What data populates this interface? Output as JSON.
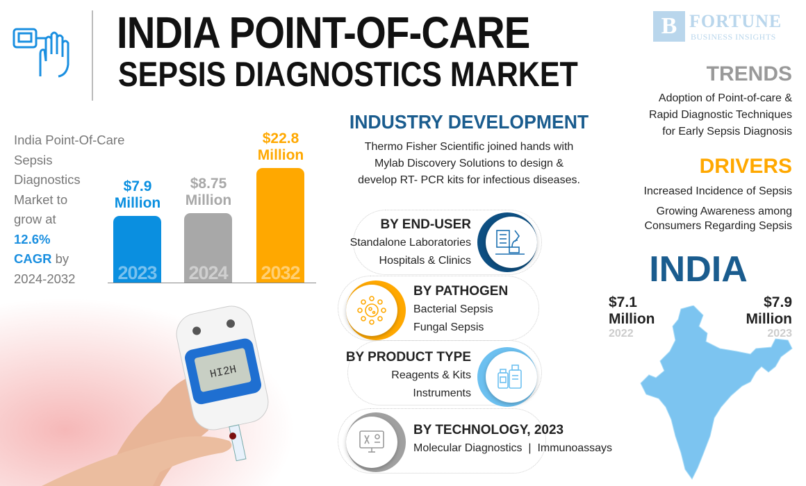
{
  "header": {
    "title_line1": "INDIA POINT-OF-CARE",
    "title_line2": "SEPSIS DIAGNOSTICS MARKET",
    "logo_line1": "FORTUNE",
    "logo_line2": "BUSINESS INSIGHTS",
    "logo_mark": "B"
  },
  "summary": {
    "line1": "India Point-Of-Care",
    "line2": "Sepsis",
    "line3": "Diagnostics",
    "line4": "Market to",
    "line5": "grow at",
    "cagr": "12.6%",
    "cagr_label": "CAGR",
    "by": " by",
    "period": "2024-2032"
  },
  "chart_data": {
    "type": "bar",
    "categories": [
      "2023",
      "2024",
      "2032"
    ],
    "values": [
      7.9,
      8.75,
      22.8
    ],
    "labels": [
      "$7.9 Million",
      "$8.75 Million",
      "$22.8 Million"
    ],
    "label_value": [
      "$7.9",
      "$8.75",
      "$22.8"
    ],
    "unit": "Million",
    "colors": [
      "#0a8fe0",
      "#a8a8a8",
      "#ffa800"
    ]
  },
  "industry": {
    "heading": "INDUSTRY DEVELOPMENT",
    "line1": "Thermo Fisher Scientific joined hands with",
    "line2": "Mylab Discovery Solutions to design &",
    "line3": "develop RT- PCR kits for infectious diseases."
  },
  "segments": [
    {
      "heading": "BY END-USER",
      "items": [
        "Standalone Laboratories",
        "Hospitals & Clinics"
      ],
      "icon": "lab-microscope-icon",
      "color": "#0d4f82"
    },
    {
      "heading": "BY PATHOGEN",
      "items": [
        "Bacterial Sepsis",
        "Fungal Sepsis"
      ],
      "icon": "virus-icon",
      "color": "#ffa800"
    },
    {
      "heading": "BY PRODUCT TYPE",
      "items": [
        "Reagents & Kits",
        "Instruments"
      ],
      "icon": "bottles-icon",
      "color": "#6cc0f0"
    },
    {
      "heading": "BY TECHNOLOGY, 2023",
      "items": [
        "Molecular Diagnostics",
        "|",
        "Immunoassays"
      ],
      "icon": "monitor-dna-icon",
      "color": "#a0a0a0"
    }
  ],
  "trends": {
    "heading": "TRENDS",
    "line1": "Adoption of Point-of-care &",
    "line2": "Rapid Diagnostic Techniques",
    "line3": "for Early Sepsis Diagnosis"
  },
  "drivers": {
    "heading": "DRIVERS",
    "item1": "Increased Incidence of Sepsis",
    "item2_line1": "Growing Awareness among",
    "item2_line2": "Consumers Regarding Sepsis"
  },
  "india": {
    "heading": "INDIA",
    "left_value": "$7.1",
    "left_unit": "Million",
    "left_year": "2022",
    "right_value": "$7.9",
    "right_unit": "Million",
    "right_year": "2023"
  },
  "colors": {
    "blue": "#0a8fe0",
    "navy": "#1a5c8e",
    "orange": "#ffa800",
    "gray": "#a8a8a8",
    "map": "#7cc4f0"
  }
}
